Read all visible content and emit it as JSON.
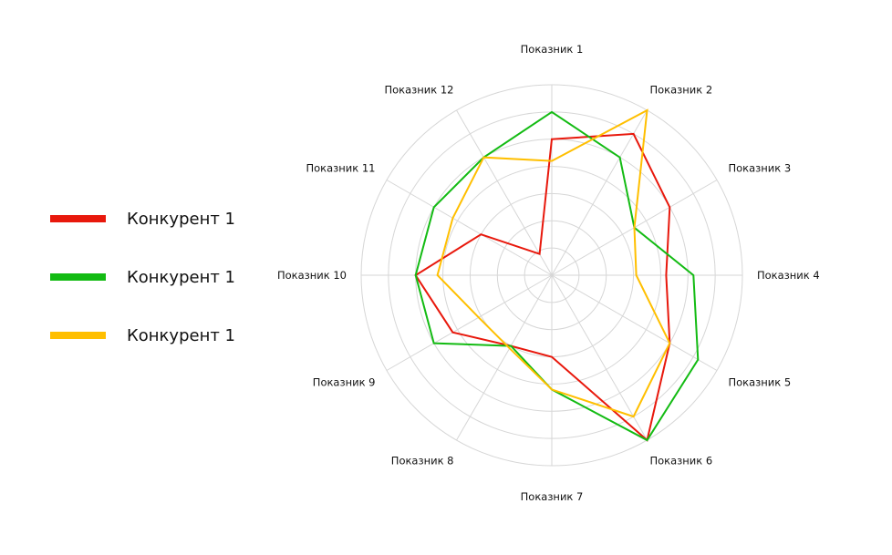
{
  "chart_data": {
    "type": "radar",
    "categories": [
      "Показник 1",
      "Показник 2",
      "Показник 3",
      "Показник 4",
      "Показник 5",
      "Показник 6",
      "Показник 7",
      "Показник 8",
      "Показник 9",
      "Показник 10",
      "Показник 11",
      "Показник 12"
    ],
    "rlim": [
      0,
      7
    ],
    "rings": [
      1,
      2,
      3,
      4,
      5,
      6,
      7
    ],
    "grid": true,
    "legend_position": "left",
    "series": [
      {
        "name": "Конкурент 1",
        "color": "#e8180c",
        "values": [
          5.0,
          6.0,
          5.0,
          4.2,
          5.0,
          7.0,
          3.0,
          3.0,
          4.2,
          5.0,
          3.0,
          0.9
        ]
      },
      {
        "name": "Конкурент 1",
        "color": "#13bb13",
        "values": [
          6.0,
          5.0,
          3.5,
          5.2,
          6.2,
          7.0,
          4.2,
          3.0,
          5.0,
          5.0,
          5.0,
          5.0
        ]
      },
      {
        "name": "Конкурент 1",
        "color": "#ffbf00",
        "values": [
          4.2,
          7.0,
          3.5,
          3.1,
          5.0,
          6.0,
          4.2,
          3.1,
          3.1,
          4.2,
          4.2,
          5.0
        ]
      }
    ]
  }
}
